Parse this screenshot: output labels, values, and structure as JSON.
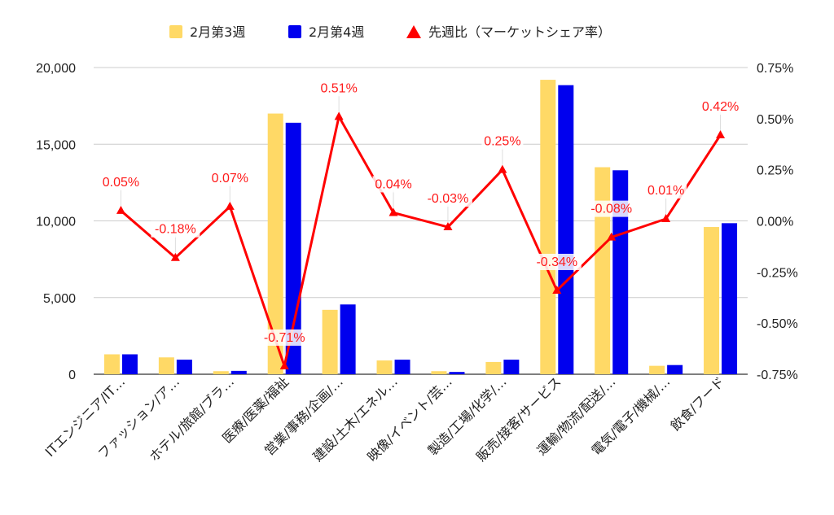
{
  "chart_data": {
    "type": "bar",
    "categories": [
      "ITエンジニア/IT…",
      "ファッション/ア…",
      "ホテル/旅館/ブラ…",
      "医療/医薬/福祉",
      "営業/事務/企画/…",
      "建設/土木/エネル…",
      "映像/イベント/芸…",
      "製造/工場/化学/…",
      "販売/接客/サービス",
      "運輸/物流/配送/…",
      "電気/電子/機械/…",
      "飲食/フード"
    ],
    "series": [
      {
        "name": "2月第3週",
        "type": "bar",
        "color": "#ffd966",
        "axis": "left",
        "values": [
          1300,
          1100,
          200,
          17000,
          4200,
          900,
          200,
          800,
          19200,
          13500,
          550,
          9600
        ]
      },
      {
        "name": "2月第4週",
        "type": "bar",
        "color": "#0000ee",
        "axis": "left",
        "values": [
          1300,
          950,
          220,
          16400,
          4550,
          950,
          150,
          950,
          18850,
          13300,
          600,
          9850
        ]
      },
      {
        "name": "先週比（マーケットシェア率）",
        "type": "line",
        "color": "#ff0000",
        "axis": "right",
        "values": [
          0.05,
          -0.18,
          0.07,
          -0.71,
          0.51,
          0.04,
          -0.03,
          0.25,
          -0.34,
          -0.08,
          0.01,
          0.42
        ],
        "labels": [
          "0.05%",
          "-0.18%",
          "0.07%",
          "-0.71%",
          "0.51%",
          "0.04%",
          "-0.03%",
          "0.25%",
          "-0.34%",
          "-0.08%",
          "0.01%",
          "0.42%"
        ]
      }
    ],
    "left_axis": {
      "range": [
        0,
        20000
      ],
      "ticks": [
        0,
        5000,
        10000,
        15000,
        20000
      ],
      "tick_labels": [
        "0",
        "5,000",
        "10,000",
        "15,000",
        "20,000"
      ]
    },
    "right_axis": {
      "range": [
        -0.75,
        0.75
      ],
      "ticks": [
        -0.75,
        -0.5,
        -0.25,
        0,
        0.25,
        0.5,
        0.75
      ],
      "tick_labels": [
        "-0.75%",
        "-0.50%",
        "-0.25%",
        "0.00%",
        "0.25%",
        "0.50%",
        "0.75%"
      ]
    },
    "grid": true,
    "legend_position": "top"
  }
}
